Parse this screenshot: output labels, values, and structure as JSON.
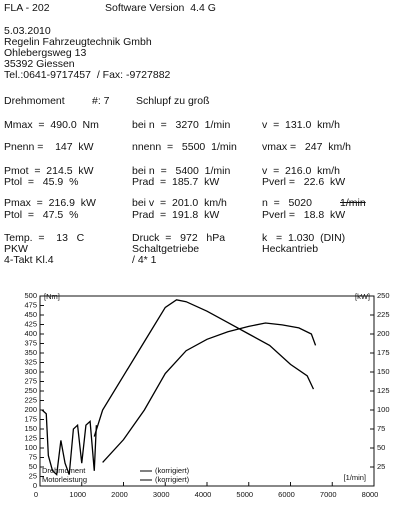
{
  "header": {
    "device": "FLA - 202",
    "software": "Software Version  4.4 G",
    "date": "5.03.2010",
    "company": "Regelin Fahrzeugtechnik Gmbh",
    "street": "Ohlebergsweg 13",
    "city": "35392 Giessen",
    "contact": "Tel.:0641-9717457  / Fax: -9727882"
  },
  "measurement": {
    "label": "Drehmoment",
    "number": "#: 7",
    "note": "Schlupf zu groß"
  },
  "results": {
    "rows": [
      [
        "Mmax  =  490.0  Nm",
        "bei n  =   3270  1/min",
        "v  =  131.0  km/h"
      ],
      [
        "Pnenn =    147  kW",
        "nnenn  =   5500  1/min",
        "vmax =   247  km/h"
      ],
      [
        "Pmot  =  214.5  kW",
        "bei n  =   5400  1/min",
        "v  =  216.0  km/h"
      ],
      [
        "Ptol  =   45.9  %",
        "Prad  =  185.7  kW",
        "Pverl =   22.6  kW"
      ],
      [
        "Pmax  =  216.9  kW",
        "bei v  =  201.0  km/h",
        "n  =   5020"
      ],
      [
        "Ptol  =   47.5  %",
        "Prad  =  191.8  kW",
        "Pverl =   18.8  kW"
      ],
      [
        "Temp.  =    13   C",
        "Druck  =   972   hPa",
        "k   =  1.030  (DIN)"
      ],
      [
        "PKW",
        "Schaltgetriebe",
        "Heckantrieb"
      ],
      [
        "4-Takt Kl.4",
        "/ 4* 1",
        ""
      ]
    ],
    "struck_unit": "1/min"
  },
  "chart": {
    "type": "line",
    "y_label": "[Nm]",
    "y2_label": "[kW]",
    "x_label": "[1/min]",
    "xlim": [
      0,
      8000
    ],
    "xticks": [
      0,
      1000,
      2000,
      3000,
      4000,
      5000,
      6000,
      7000,
      8000
    ],
    "ylim": [
      0,
      500
    ],
    "yticks": [
      0,
      25,
      50,
      75,
      100,
      125,
      150,
      175,
      200,
      225,
      250,
      275,
      300,
      325,
      350,
      375,
      400,
      425,
      450,
      475,
      500
    ],
    "y2lim": [
      0,
      250
    ],
    "y2ticks": [
      25,
      50,
      75,
      100,
      125,
      150,
      175,
      200,
      225,
      250
    ],
    "series": [
      {
        "name": "Drehmoment",
        "legend": "(korrigiert)",
        "color": "#000",
        "axis": "y",
        "x": [
          1300,
          1500,
          2000,
          2500,
          3000,
          3270,
          3500,
          4000,
          4500,
          5000,
          5500,
          6000,
          6400,
          6550
        ],
        "values": [
          130,
          200,
          290,
          380,
          470,
          490,
          485,
          460,
          430,
          400,
          370,
          320,
          290,
          255
        ]
      },
      {
        "name": "Motorleistung",
        "legend": "(korrigiert)",
        "color": "#000",
        "axis": "y2",
        "x": [
          1500,
          2000,
          2500,
          3000,
          3500,
          4000,
          4500,
          5000,
          5400,
          5800,
          6200,
          6500,
          6600
        ],
        "values": [
          31,
          61,
          100,
          148,
          178,
          193,
          203,
          210,
          214.5,
          212,
          208,
          200,
          185
        ]
      },
      {
        "color": "#000",
        "axis": "y",
        "x": [
          50,
          150,
          200,
          300,
          400,
          500,
          600,
          700,
          800,
          900,
          1000,
          1100,
          1200,
          1300,
          1350
        ],
        "values": [
          200,
          190,
          80,
          40,
          30,
          120,
          60,
          30,
          150,
          160,
          60,
          160,
          170,
          40,
          160
        ]
      }
    ]
  }
}
